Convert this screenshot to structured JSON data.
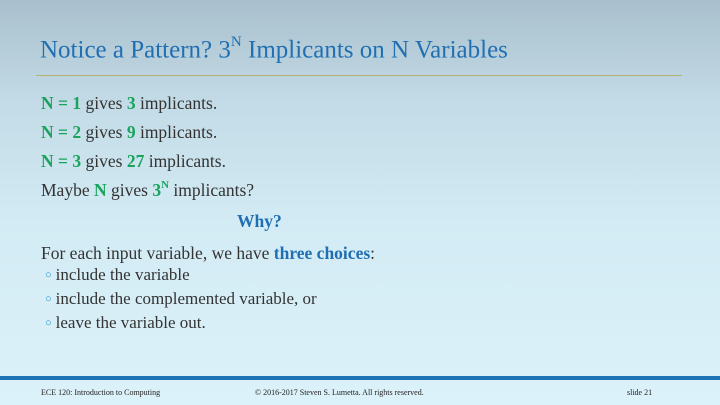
{
  "title": {
    "prefix": "Notice a Pattern?  3",
    "sup": "N",
    "suffix": " Implicants on N Variables"
  },
  "lines": [
    {
      "n": "N = 1",
      "mid": " gives ",
      "count": "3",
      "end": " implicants."
    },
    {
      "n": "N = 2",
      "mid": " gives ",
      "count": "9",
      "end": " implicants."
    },
    {
      "n": "N = 3",
      "mid": " gives ",
      "count": "27",
      "end": " implicants."
    }
  ],
  "maybe": {
    "pre": "Maybe ",
    "n": "N",
    "mid": " gives ",
    "base": "3",
    "sup": "N",
    "end": " implicants?"
  },
  "why": "Why?",
  "choices_intro": {
    "pre": "For each input variable, we have ",
    "bold": "three choices",
    "end": ":"
  },
  "bullets": [
    "include the variable",
    "include the complemented variable, or",
    "leave the variable out."
  ],
  "footer": {
    "course": "ECE 120: Introduction to Computing",
    "copyright": "© 2016-2017 Steven S. Lumetta.  All rights reserved.",
    "slide": "slide 21"
  },
  "colors": {
    "title": "#1f6fb2",
    "highlight_green": "#1aa35c",
    "footer_bar": "#1e73b7"
  }
}
